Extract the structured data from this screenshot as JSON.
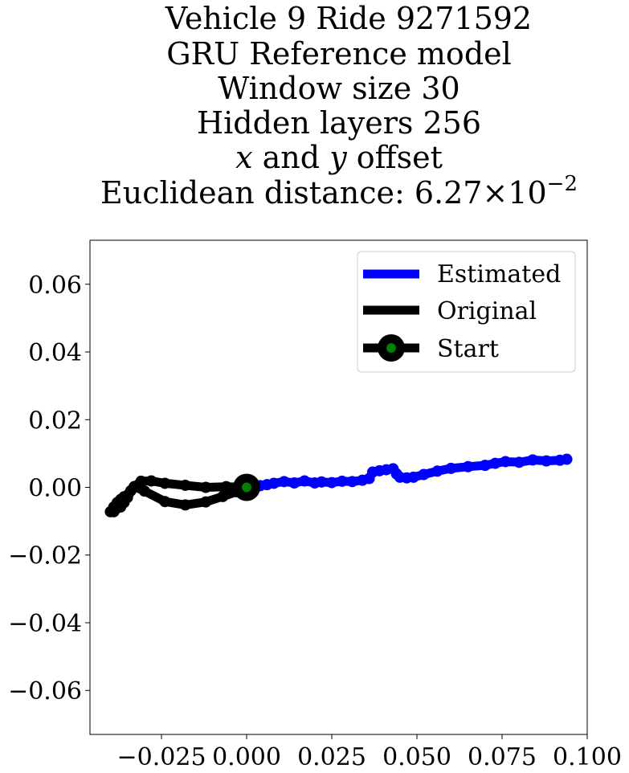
{
  "chart_data": {
    "type": "line",
    "title_lines": [
      "Vehicle 9 Ride 9271592",
      "GRU Reference model",
      "Window size 30",
      "Hidden layers 256",
      "x and y offset",
      "Euclidean distance: 6.27×10−2"
    ],
    "title_rich": {
      "offset_var_x": "x",
      "offset_and": " and ",
      "offset_var_y": "y",
      "offset_tail": " offset",
      "distance_prefix": "Euclidean distance: ",
      "distance_mantissa": "6.27",
      "distance_times": "×",
      "distance_base": "10",
      "distance_exponent": "−2"
    },
    "xlim": [
      -0.046,
      0.1
    ],
    "ylim": [
      -0.073,
      0.073
    ],
    "x_ticks": [
      -0.025,
      0.0,
      0.025,
      0.05,
      0.075,
      0.1
    ],
    "x_tick_labels": [
      "−0.025",
      "0.000",
      "0.025",
      "0.050",
      "0.075",
      "0.100"
    ],
    "y_ticks": [
      0.06,
      0.04,
      0.02,
      0.0,
      -0.02,
      -0.04,
      -0.06
    ],
    "y_tick_labels": [
      "0.06",
      "0.04",
      "0.02",
      "0.00",
      "−0.02",
      "−0.04",
      "−0.06"
    ],
    "legend_position": "upper-right",
    "series": [
      {
        "name": "Estimated",
        "color": "#0000ff",
        "x": [
          0.0,
          0.004,
          0.006,
          0.008,
          0.011,
          0.014,
          0.017,
          0.02,
          0.022,
          0.025,
          0.028,
          0.031,
          0.034,
          0.036,
          0.037,
          0.039,
          0.041,
          0.043,
          0.044,
          0.045,
          0.047,
          0.049,
          0.052,
          0.056,
          0.06,
          0.065,
          0.07,
          0.073,
          0.076,
          0.08,
          0.084,
          0.088,
          0.092,
          0.094
        ],
        "y": [
          0.0,
          0.0005,
          0.0008,
          0.0012,
          0.0017,
          0.0013,
          0.0019,
          0.0013,
          0.0016,
          0.0014,
          0.0018,
          0.0017,
          0.0021,
          0.0026,
          0.0045,
          0.0049,
          0.0052,
          0.0055,
          0.004,
          0.003,
          0.0028,
          0.003,
          0.0038,
          0.0048,
          0.0056,
          0.0061,
          0.0065,
          0.0071,
          0.0076,
          0.0074,
          0.0081,
          0.0078,
          0.008,
          0.0083
        ]
      },
      {
        "name": "Original",
        "color": "#000000",
        "x": [
          0.0,
          -0.006,
          -0.012,
          -0.018,
          -0.024,
          -0.028,
          -0.031,
          -0.033,
          -0.034,
          -0.036,
          -0.037,
          -0.038,
          -0.039,
          -0.04,
          -0.039,
          -0.037,
          -0.036,
          -0.035,
          -0.033,
          -0.03,
          -0.024,
          -0.018,
          -0.012,
          -0.007,
          -0.003,
          0.0
        ],
        "y": [
          0.0,
          0.0002,
          0.0,
          0.0006,
          0.0012,
          0.0019,
          0.0018,
          0.0002,
          -0.001,
          -0.0028,
          -0.0036,
          -0.0045,
          -0.0058,
          -0.0072,
          -0.0072,
          -0.0058,
          -0.0045,
          -0.003,
          0.0002,
          -0.0011,
          -0.0042,
          -0.0052,
          -0.0043,
          -0.0027,
          -0.0013,
          0.0
        ]
      }
    ],
    "start_marker": {
      "name": "Start",
      "x": 0.0,
      "y": 0.0,
      "outer_color": "#000000",
      "inner_color": "#008000"
    }
  }
}
